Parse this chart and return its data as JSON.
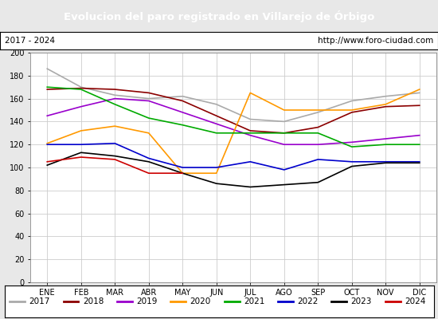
{
  "title": "Evolucion del paro registrado en Villarejo de Órbigo",
  "subtitle_left": "2017 - 2024",
  "subtitle_right": "http://www.foro-ciudad.com",
  "title_bg_color": "#4472C4",
  "title_text_color": "white",
  "months": [
    "ENE",
    "FEB",
    "MAR",
    "ABR",
    "MAY",
    "JUN",
    "JUL",
    "AGO",
    "SEP",
    "OCT",
    "NOV",
    "DIC"
  ],
  "ylim": [
    0,
    200
  ],
  "yticks": [
    0,
    20,
    40,
    60,
    80,
    100,
    120,
    140,
    160,
    180,
    200
  ],
  "series": {
    "2017": {
      "color": "#aaaaaa",
      "data": [
        186,
        170,
        163,
        160,
        162,
        155,
        142,
        140,
        148,
        158,
        162,
        165
      ]
    },
    "2018": {
      "color": "#8B0000",
      "data": [
        168,
        169,
        168,
        165,
        158,
        145,
        132,
        130,
        135,
        148,
        153,
        154
      ]
    },
    "2019": {
      "color": "#9900CC",
      "data": [
        145,
        153,
        160,
        158,
        148,
        138,
        128,
        120,
        120,
        122,
        125,
        128
      ]
    },
    "2020": {
      "color": "#FF9900",
      "data": [
        121,
        132,
        136,
        130,
        95,
        95,
        165,
        150,
        150,
        150,
        155,
        168
      ]
    },
    "2021": {
      "color": "#00AA00",
      "data": [
        170,
        168,
        155,
        143,
        137,
        130,
        130,
        130,
        130,
        118,
        120,
        120
      ]
    },
    "2022": {
      "color": "#0000CC",
      "data": [
        120,
        120,
        121,
        108,
        100,
        100,
        105,
        98,
        107,
        105,
        105,
        105
      ]
    },
    "2023": {
      "color": "#000000",
      "data": [
        102,
        113,
        110,
        105,
        95,
        86,
        83,
        85,
        87,
        101,
        104,
        104
      ]
    },
    "2024": {
      "color": "#CC0000",
      "data": [
        105,
        109,
        107,
        95,
        95,
        null,
        null,
        null,
        null,
        null,
        null,
        null
      ]
    }
  },
  "bg_color": "#e8e8e8",
  "plot_bg_color": "#ffffff",
  "grid_color": "#cccccc",
  "legend_order": [
    "2017",
    "2018",
    "2019",
    "2020",
    "2021",
    "2022",
    "2023",
    "2024"
  ]
}
